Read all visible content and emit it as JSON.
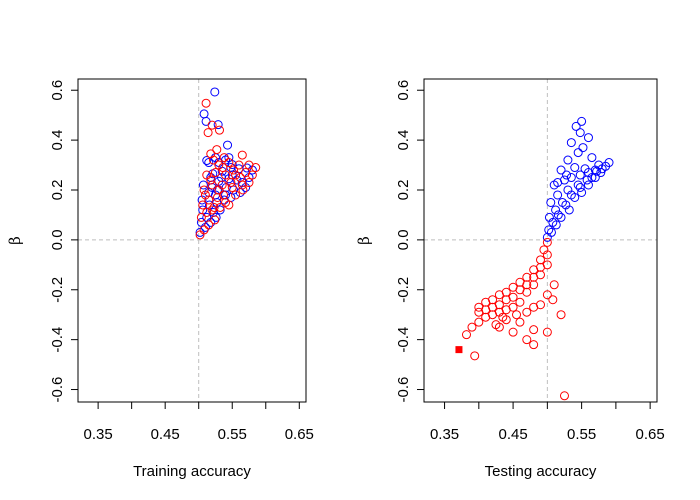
{
  "colors": {
    "blue": "#0000FF",
    "red": "#FF0000",
    "ref": "#BEBEBE",
    "axis": "#000000"
  },
  "chart_data": [
    {
      "type": "scatter",
      "xlabel": "Training accuracy",
      "ylabel": "β",
      "xlim": [
        0.32,
        0.66
      ],
      "ylim": [
        -0.65,
        0.645
      ],
      "x_ticks": [
        0.35,
        0.4,
        0.45,
        0.5,
        0.55,
        0.6,
        0.65
      ],
      "x_tick_labels": [
        "0.35",
        "0.45",
        "0.55",
        "0.65"
      ],
      "x_tick_label_values": [
        0.35,
        0.45,
        0.55,
        0.65
      ],
      "y_ticks": [
        -0.6,
        -0.4,
        -0.2,
        0.0,
        0.2,
        0.4,
        0.6
      ],
      "y_tick_labels": [
        "-0.6",
        "-0.4",
        "-0.2",
        "0.0",
        "0.2",
        "0.4",
        "0.6"
      ],
      "ref_lines": {
        "x": 0.5,
        "y": 0.0
      },
      "series": [
        {
          "color": "blue",
          "marker": "open-circle",
          "points": [
            [
              0.524,
              0.593
            ],
            [
              0.508,
              0.505
            ],
            [
              0.511,
              0.475
            ],
            [
              0.529,
              0.462
            ],
            [
              0.543,
              0.38
            ],
            [
              0.512,
              0.318
            ],
            [
              0.525,
              0.33
            ],
            [
              0.54,
              0.32
            ],
            [
              0.55,
              0.302
            ],
            [
              0.521,
              0.265
            ],
            [
              0.535,
              0.275
            ],
            [
              0.548,
              0.29
            ],
            [
              0.56,
              0.285
            ],
            [
              0.572,
              0.288
            ],
            [
              0.58,
              0.28
            ],
            [
              0.507,
              0.22
            ],
            [
              0.518,
              0.25
            ],
            [
              0.53,
              0.235
            ],
            [
              0.545,
              0.245
            ],
            [
              0.557,
              0.24
            ],
            [
              0.565,
              0.23
            ],
            [
              0.575,
              0.25
            ],
            [
              0.505,
              0.16
            ],
            [
              0.515,
              0.19
            ],
            [
              0.528,
              0.2
            ],
            [
              0.54,
              0.18
            ],
            [
              0.552,
              0.2
            ],
            [
              0.562,
              0.19
            ],
            [
              0.57,
              0.21
            ],
            [
              0.506,
              0.12
            ],
            [
              0.516,
              0.14
            ],
            [
              0.527,
              0.15
            ],
            [
              0.538,
              0.16
            ],
            [
              0.548,
              0.17
            ],
            [
              0.504,
              0.07
            ],
            [
              0.512,
              0.09
            ],
            [
              0.522,
              0.11
            ],
            [
              0.532,
              0.12
            ],
            [
              0.502,
              0.03
            ],
            [
              0.51,
              0.05
            ],
            [
              0.518,
              0.07
            ],
            [
              0.526,
              0.09
            ],
            [
              0.515,
              0.31
            ],
            [
              0.53,
              0.31
            ],
            [
              0.545,
              0.33
            ],
            [
              0.52,
              0.21
            ],
            [
              0.534,
              0.25
            ],
            [
              0.55,
              0.26
            ],
            [
              0.525,
              0.18
            ],
            [
              0.541,
              0.21
            ]
          ]
        },
        {
          "color": "red",
          "marker": "open-circle",
          "points": [
            [
              0.511,
              0.548
            ],
            [
              0.52,
              0.46
            ],
            [
              0.514,
              0.43
            ],
            [
              0.531,
              0.44
            ],
            [
              0.527,
              0.362
            ],
            [
              0.518,
              0.345
            ],
            [
              0.538,
              0.33
            ],
            [
              0.565,
              0.34
            ],
            [
              0.53,
              0.3
            ],
            [
              0.545,
              0.31
            ],
            [
              0.56,
              0.3
            ],
            [
              0.575,
              0.3
            ],
            [
              0.585,
              0.29
            ],
            [
              0.512,
              0.26
            ],
            [
              0.525,
              0.27
            ],
            [
              0.54,
              0.26
            ],
            [
              0.555,
              0.26
            ],
            [
              0.57,
              0.27
            ],
            [
              0.58,
              0.26
            ],
            [
              0.508,
              0.2
            ],
            [
              0.52,
              0.22
            ],
            [
              0.535,
              0.22
            ],
            [
              0.55,
              0.21
            ],
            [
              0.565,
              0.22
            ],
            [
              0.575,
              0.23
            ],
            [
              0.506,
              0.14
            ],
            [
              0.515,
              0.16
            ],
            [
              0.528,
              0.17
            ],
            [
              0.54,
              0.15
            ],
            [
              0.555,
              0.18
            ],
            [
              0.566,
              0.2
            ],
            [
              0.504,
              0.09
            ],
            [
              0.512,
              0.11
            ],
            [
              0.52,
              0.12
            ],
            [
              0.532,
              0.13
            ],
            [
              0.545,
              0.14
            ],
            [
              0.502,
              0.02
            ],
            [
              0.508,
              0.04
            ],
            [
              0.515,
              0.06
            ],
            [
              0.524,
              0.08
            ],
            [
              0.522,
              0.32
            ],
            [
              0.536,
              0.29
            ],
            [
              0.552,
              0.28
            ],
            [
              0.518,
              0.24
            ],
            [
              0.53,
              0.2
            ],
            [
              0.548,
              0.23
            ],
            [
              0.562,
              0.25
            ],
            [
              0.51,
              0.18
            ],
            [
              0.523,
              0.13
            ],
            [
              0.537,
              0.18
            ]
          ]
        }
      ]
    },
    {
      "type": "scatter",
      "xlabel": "Testing accuracy",
      "ylabel": "β",
      "xlim": [
        0.32,
        0.66
      ],
      "ylim": [
        -0.65,
        0.645
      ],
      "x_ticks": [
        0.35,
        0.4,
        0.45,
        0.5,
        0.55,
        0.6,
        0.65
      ],
      "x_tick_labels": [
        "0.35",
        "0.45",
        "0.55",
        "0.65"
      ],
      "x_tick_label_values": [
        0.35,
        0.45,
        0.55,
        0.65
      ],
      "y_ticks": [
        -0.6,
        -0.4,
        -0.2,
        0.0,
        0.2,
        0.4,
        0.6
      ],
      "y_tick_labels": [
        "-0.6",
        "-0.4",
        "-0.2",
        "0.0",
        "0.2",
        "0.4",
        "0.6"
      ],
      "ref_lines": {
        "x": 0.5,
        "y": 0.0
      },
      "series": [
        {
          "color": "blue",
          "marker": "open-circle",
          "points": [
            [
              0.55,
              0.475
            ],
            [
              0.542,
              0.455
            ],
            [
              0.548,
              0.43
            ],
            [
              0.56,
              0.41
            ],
            [
              0.535,
              0.39
            ],
            [
              0.552,
              0.37
            ],
            [
              0.545,
              0.35
            ],
            [
              0.565,
              0.33
            ],
            [
              0.53,
              0.32
            ],
            [
              0.575,
              0.3
            ],
            [
              0.59,
              0.31
            ],
            [
              0.585,
              0.295
            ],
            [
              0.52,
              0.28
            ],
            [
              0.54,
              0.29
            ],
            [
              0.555,
              0.285
            ],
            [
              0.57,
              0.28
            ],
            [
              0.58,
              0.285
            ],
            [
              0.51,
              0.22
            ],
            [
              0.525,
              0.24
            ],
            [
              0.535,
              0.25
            ],
            [
              0.548,
              0.26
            ],
            [
              0.56,
              0.27
            ],
            [
              0.572,
              0.275
            ],
            [
              0.505,
              0.15
            ],
            [
              0.515,
              0.18
            ],
            [
              0.53,
              0.2
            ],
            [
              0.545,
              0.22
            ],
            [
              0.558,
              0.24
            ],
            [
              0.503,
              0.09
            ],
            [
              0.512,
              0.12
            ],
            [
              0.522,
              0.15
            ],
            [
              0.535,
              0.18
            ],
            [
              0.548,
              0.21
            ],
            [
              0.502,
              0.04
            ],
            [
              0.508,
              0.07
            ],
            [
              0.516,
              0.1
            ],
            [
              0.527,
              0.14
            ],
            [
              0.54,
              0.17
            ],
            [
              0.5,
              0.01
            ],
            [
              0.506,
              0.03
            ],
            [
              0.513,
              0.06
            ],
            [
              0.52,
              0.09
            ],
            [
              0.532,
              0.12
            ],
            [
              0.55,
              0.19
            ],
            [
              0.565,
              0.25
            ],
            [
              0.578,
              0.27
            ],
            [
              0.515,
              0.23
            ],
            [
              0.528,
              0.26
            ],
            [
              0.56,
              0.22
            ],
            [
              0.57,
              0.25
            ]
          ]
        },
        {
          "color": "red",
          "marker": "open-circle",
          "points": [
            [
              0.394,
              -0.465
            ],
            [
              0.382,
              -0.38
            ],
            [
              0.39,
              -0.35
            ],
            [
              0.4,
              -0.33
            ],
            [
              0.41,
              -0.31
            ],
            [
              0.42,
              -0.3
            ],
            [
              0.43,
              -0.29
            ],
            [
              0.44,
              -0.28
            ],
            [
              0.45,
              -0.27
            ],
            [
              0.4,
              -0.27
            ],
            [
              0.41,
              -0.25
            ],
            [
              0.42,
              -0.24
            ],
            [
              0.43,
              -0.22
            ],
            [
              0.44,
              -0.21
            ],
            [
              0.45,
              -0.19
            ],
            [
              0.46,
              -0.17
            ],
            [
              0.47,
              -0.15
            ],
            [
              0.48,
              -0.12
            ],
            [
              0.49,
              -0.08
            ],
            [
              0.495,
              -0.04
            ],
            [
              0.5,
              -0.01
            ],
            [
              0.44,
              -0.32
            ],
            [
              0.455,
              -0.3
            ],
            [
              0.46,
              -0.33
            ],
            [
              0.47,
              -0.29
            ],
            [
              0.48,
              -0.27
            ],
            [
              0.49,
              -0.26
            ],
            [
              0.5,
              -0.22
            ],
            [
              0.46,
              -0.25
            ],
            [
              0.47,
              -0.21
            ],
            [
              0.48,
              -0.18
            ],
            [
              0.49,
              -0.14
            ],
            [
              0.5,
              -0.1
            ],
            [
              0.43,
              -0.35
            ],
            [
              0.45,
              -0.37
            ],
            [
              0.48,
              -0.36
            ],
            [
              0.5,
              -0.37
            ],
            [
              0.47,
              -0.4
            ],
            [
              0.48,
              -0.42
            ],
            [
              0.43,
              -0.26
            ],
            [
              0.44,
              -0.24
            ],
            [
              0.45,
              -0.23
            ],
            [
              0.46,
              -0.2
            ],
            [
              0.47,
              -0.18
            ],
            [
              0.48,
              -0.15
            ],
            [
              0.49,
              -0.11
            ],
            [
              0.5,
              -0.06
            ],
            [
              0.52,
              -0.3
            ],
            [
              0.508,
              -0.24
            ],
            [
              0.51,
              -0.18
            ],
            [
              0.41,
              -0.28
            ],
            [
              0.42,
              -0.27
            ],
            [
              0.425,
              -0.34
            ],
            [
              0.435,
              -0.31
            ],
            [
              0.4,
              -0.29
            ]
          ]
        },
        {
          "color": "red",
          "marker": "filled-square",
          "points": [
            [
              0.371,
              -0.44
            ]
          ]
        },
        {
          "color": "red",
          "marker": "open-circle",
          "points": [
            [
              0.525,
              -0.625
            ]
          ]
        }
      ]
    }
  ]
}
